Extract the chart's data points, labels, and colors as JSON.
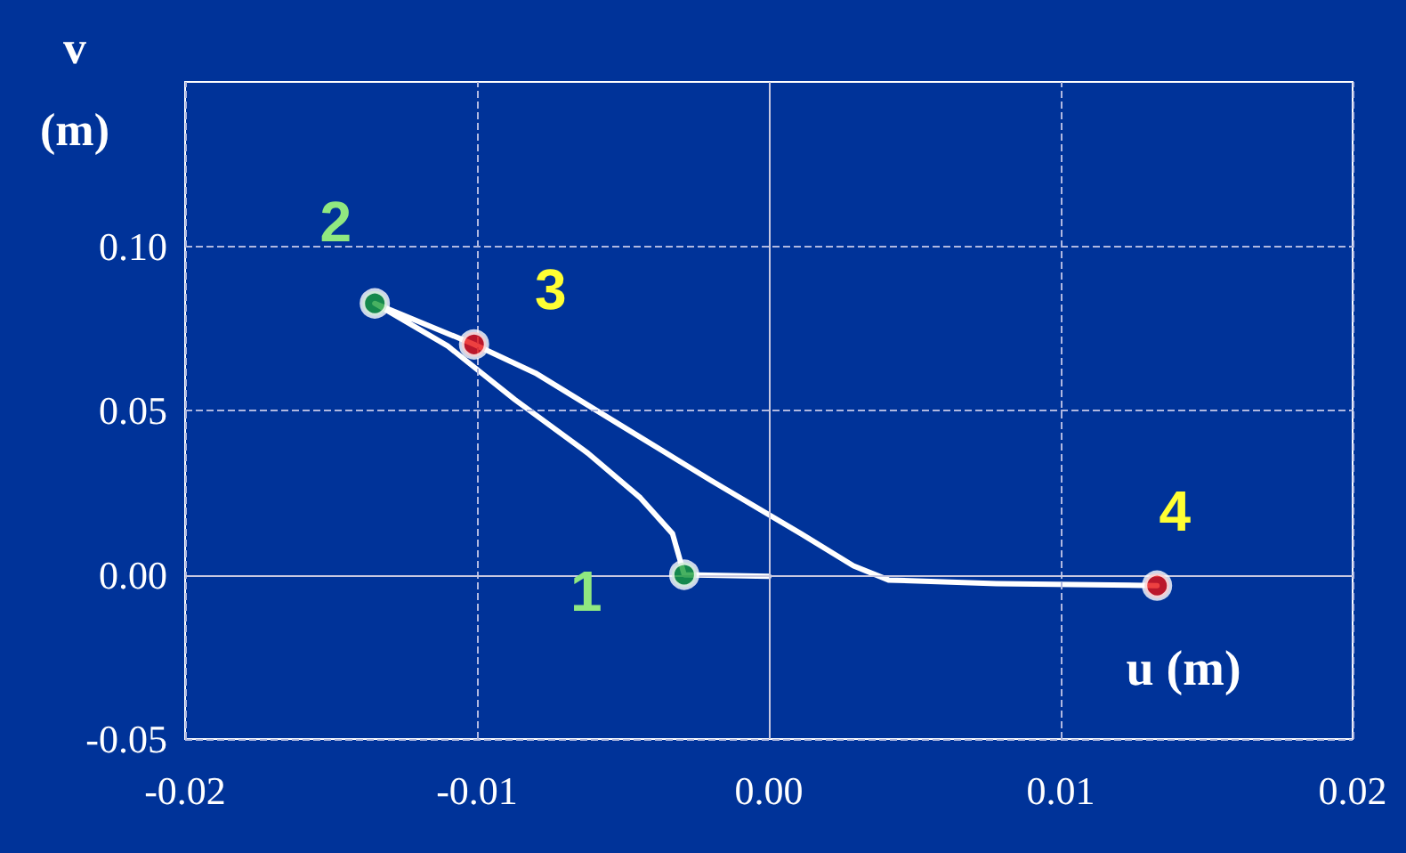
{
  "chart_data": {
    "type": "line",
    "xlabel": "u (m)",
    "ylabel": "v (m)",
    "xlim": [
      -0.02,
      0.02
    ],
    "ylim": [
      -0.05,
      0.15
    ],
    "xticks": [
      {
        "value": -0.02,
        "label": "-0.02"
      },
      {
        "value": -0.01,
        "label": "-0.01"
      },
      {
        "value": 0,
        "label": "0.00"
      },
      {
        "value": 0.01,
        "label": "0.01"
      },
      {
        "value": 0.02,
        "label": "0.02"
      }
    ],
    "yticks": [
      {
        "value": -0.05,
        "label": "-0.05"
      },
      {
        "value": 0,
        "label": "0.00"
      },
      {
        "value": 0.05,
        "label": "0.05"
      },
      {
        "value": 0.1,
        "label": "0.10"
      }
    ],
    "grid": true,
    "line_style": "solid",
    "marker": "circle",
    "series": [
      {
        "type": "line",
        "color": "#ffffff",
        "marker": "none",
        "x": [
          0,
          -0.0029,
          -0.0033,
          -0.0044,
          -0.0062,
          -0.0087,
          -0.011,
          -0.0135,
          -0.0101,
          -0.008,
          -0.005,
          -0.002,
          0.0011,
          0.0029,
          0.0041,
          0.0078,
          0.0133
        ],
        "values": [
          -0.0005,
          0,
          0.0125,
          0.0234,
          0.037,
          0.0533,
          0.0696,
          0.0826,
          0.0701,
          0.0614,
          0.0451,
          0.0288,
          0.0125,
          0.0027,
          -0.0016,
          -0.0027,
          -0.0033
        ]
      },
      {
        "type": "scatter",
        "colors": [
          "#1a9e3a",
          "#1a9e3a",
          "#e81010",
          "#e81010"
        ],
        "x": [
          -0.0029,
          -0.0135,
          -0.0101,
          0.0133
        ],
        "values": [
          0,
          0.0826,
          0.0701,
          -0.0033
        ]
      }
    ],
    "annotations": [
      {
        "text": "1",
        "x": -0.0029,
        "y": 0
      },
      {
        "text": "2",
        "x": -0.0135,
        "y": 0.0826
      },
      {
        "text": "3",
        "x": -0.0101,
        "y": 0.0701
      },
      {
        "text": "4",
        "x": 0.0133,
        "y": -0.0033
      }
    ]
  }
}
